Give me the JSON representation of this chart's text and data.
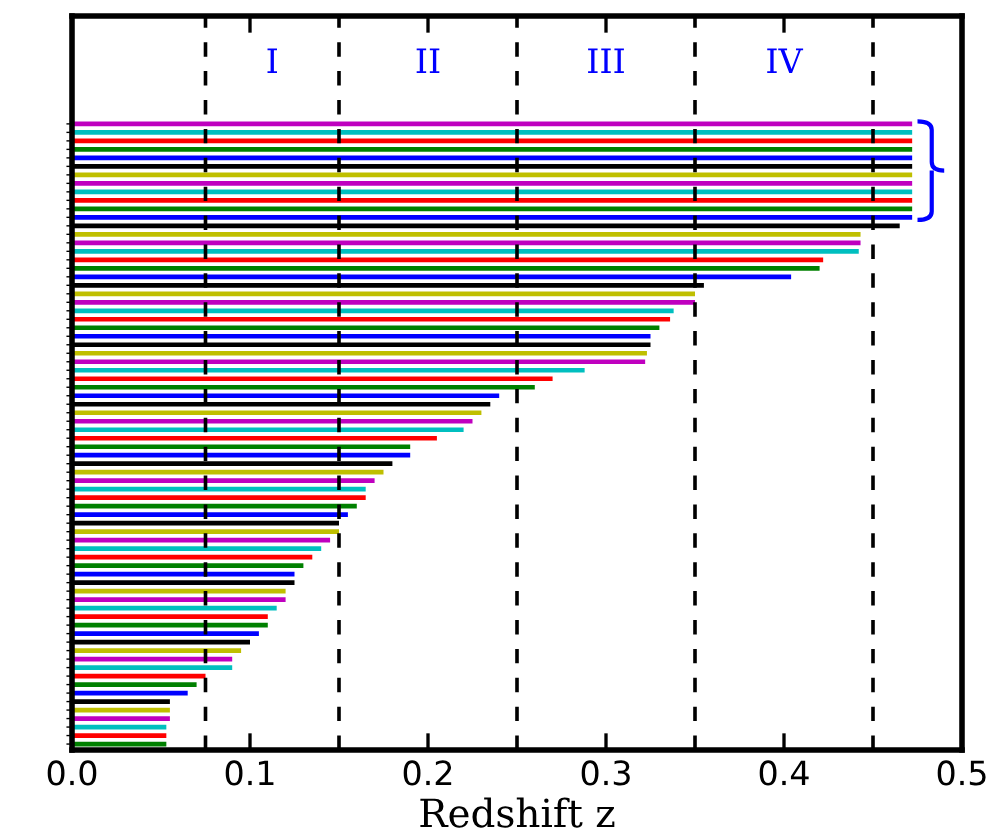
{
  "chart_data": {
    "type": "bar",
    "orientation": "horizontal",
    "xlabel": "Redshift z",
    "categories": [
      null,
      null,
      null,
      null,
      null,
      null,
      null,
      null,
      null,
      null,
      null,
      null,
      null,
      null,
      null,
      null,
      null,
      null,
      null,
      null,
      null,
      null,
      null,
      null,
      null,
      null,
      null,
      null,
      null,
      null,
      null,
      null,
      null,
      null,
      null,
      null,
      null,
      null,
      null,
      null,
      null,
      null,
      null,
      null,
      null,
      null,
      null,
      null,
      null,
      null,
      null,
      null,
      null,
      null,
      null,
      null,
      null,
      null,
      null,
      null,
      null,
      null,
      null,
      null,
      null,
      null,
      null,
      null,
      null,
      null,
      null,
      null,
      null,
      null
    ],
    "values": [
      0.472,
      0.472,
      0.472,
      0.472,
      0.472,
      0.472,
      0.472,
      0.472,
      0.472,
      0.472,
      0.472,
      0.472,
      0.465,
      0.443,
      0.443,
      0.442,
      0.422,
      0.42,
      0.404,
      0.355,
      0.35,
      0.35,
      0.338,
      0.336,
      0.33,
      0.325,
      0.325,
      0.323,
      0.322,
      0.288,
      0.27,
      0.26,
      0.24,
      0.235,
      0.23,
      0.225,
      0.22,
      0.205,
      0.19,
      0.19,
      0.18,
      0.175,
      0.17,
      0.165,
      0.165,
      0.16,
      0.155,
      0.15,
      0.15,
      0.145,
      0.14,
      0.135,
      0.13,
      0.125,
      0.125,
      0.12,
      0.12,
      0.115,
      0.11,
      0.11,
      0.105,
      0.1,
      0.095,
      0.09,
      0.09,
      0.075,
      0.07,
      0.065,
      0.055,
      0.055,
      0.055,
      0.053,
      0.053,
      0.053
    ],
    "colors": [
      "#bf00bf",
      "#00bfbf",
      "#ff0000",
      "#008000",
      "#0000ff",
      "#000000",
      "#bfbf00",
      "#bf00bf",
      "#00bfbf",
      "#ff0000",
      "#008000",
      "#0000ff",
      "#000000",
      "#bfbf00",
      "#bf00bf",
      "#00bfbf",
      "#ff0000",
      "#008000",
      "#0000ff",
      "#000000",
      "#bfbf00",
      "#bf00bf",
      "#00bfbf",
      "#ff0000",
      "#008000",
      "#0000ff",
      "#000000",
      "#bfbf00",
      "#bf00bf",
      "#00bfbf",
      "#ff0000",
      "#008000",
      "#0000ff",
      "#000000",
      "#bfbf00",
      "#bf00bf",
      "#00bfbf",
      "#ff0000",
      "#008000",
      "#0000ff",
      "#000000",
      "#bfbf00",
      "#bf00bf",
      "#00bfbf",
      "#ff0000",
      "#008000",
      "#0000ff",
      "#000000",
      "#bfbf00",
      "#bf00bf",
      "#00bfbf",
      "#ff0000",
      "#008000",
      "#0000ff",
      "#000000",
      "#bfbf00",
      "#bf00bf",
      "#00bfbf",
      "#ff0000",
      "#008000",
      "#0000ff",
      "#000000",
      "#bfbf00",
      "#bf00bf",
      "#00bfbf",
      "#ff0000",
      "#008000",
      "#0000ff",
      "#000000",
      "#bfbf00",
      "#bf00bf",
      "#00bfbf",
      "#ff0000",
      "#008000"
    ],
    "xlim": [
      0,
      0.5
    ],
    "xticks": [
      {
        "value": 0,
        "label": "0.0"
      },
      {
        "value": 0.1,
        "label": "0.1"
      },
      {
        "value": 0.2,
        "label": "0.2"
      },
      {
        "value": 0.3,
        "label": "0.3"
      },
      {
        "value": 0.4,
        "label": "0.4"
      },
      {
        "value": 0.5,
        "label": "0.5"
      }
    ],
    "ref_lines": [
      {
        "axis": "x",
        "value": 0.075,
        "color": "#000000",
        "line_style": "dashed"
      },
      {
        "axis": "x",
        "value": 0.15,
        "color": "#000000",
        "line_style": "dashed"
      },
      {
        "axis": "x",
        "value": 0.25,
        "color": "#000000",
        "line_style": "dashed"
      },
      {
        "axis": "x",
        "value": 0.35,
        "color": "#000000",
        "line_style": "dashed"
      },
      {
        "axis": "x",
        "value": 0.45,
        "color": "#000000",
        "line_style": "dashed"
      }
    ],
    "annotations": [
      "I",
      "II",
      "III",
      "IV"
    ],
    "grid": false,
    "legend": false
  }
}
